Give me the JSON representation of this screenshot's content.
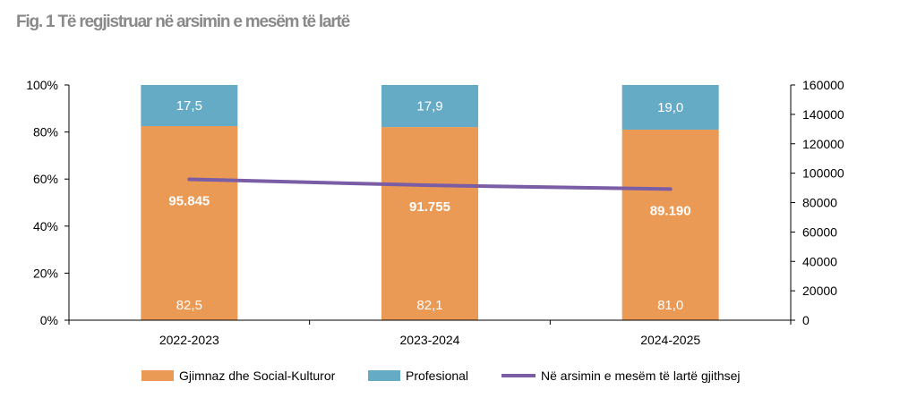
{
  "title": "Fig. 1 Të regjistruar në arsimin e mesëm të lartë",
  "chart_data": {
    "type": "bar",
    "stacked": true,
    "categories": [
      "2022-2023",
      "2023-2024",
      "2024-2025"
    ],
    "series": [
      {
        "name": "Gjimnaz dhe Social-Kulturor",
        "type": "bar",
        "axis": "left",
        "values": [
          82.5,
          82.1,
          81.0
        ],
        "labels": [
          "82,5",
          "82,1",
          "81,0"
        ],
        "color": "#EB9A55"
      },
      {
        "name": "Profesional",
        "type": "bar",
        "axis": "left",
        "values": [
          17.5,
          17.9,
          19.0
        ],
        "labels": [
          "17,5",
          "17,9",
          "19,0"
        ],
        "color": "#65ABC5"
      },
      {
        "name": "Në arsimin e mesëm të lartë gjithsej",
        "type": "line",
        "axis": "right",
        "values": [
          95845,
          91755,
          89190
        ],
        "labels": [
          "95.845",
          "91.755",
          "89.190"
        ],
        "color": "#7A5DA5"
      }
    ],
    "y_left": {
      "min": 0,
      "max": 100,
      "ticks": [
        "0%",
        "20%",
        "40%",
        "60%",
        "80%",
        "100%"
      ]
    },
    "y_right": {
      "min": 0,
      "max": 160000,
      "ticks": [
        "0",
        "20000",
        "40000",
        "60000",
        "80000",
        "100000",
        "120000",
        "140000",
        "160000"
      ]
    },
    "legend_position": "bottom",
    "grid": false
  }
}
